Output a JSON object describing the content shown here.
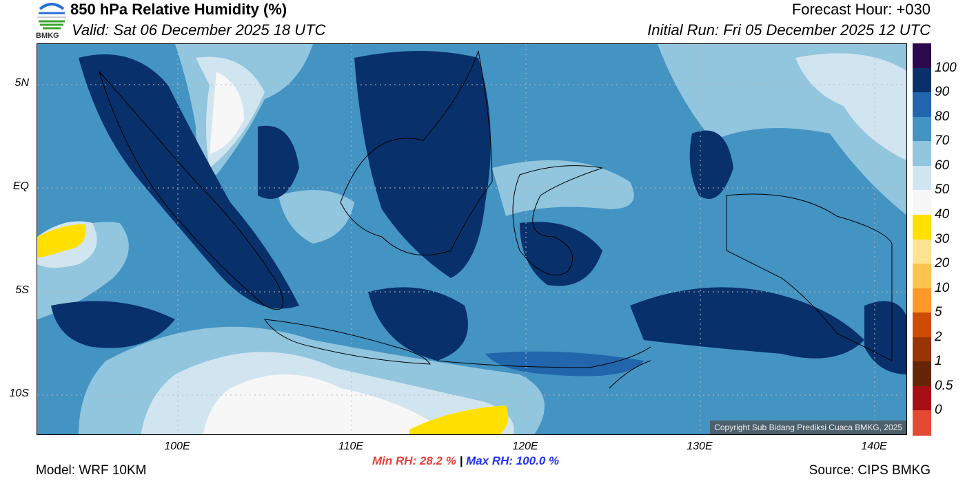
{
  "header": {
    "title": "850 hPa Relative Humidity (%)",
    "valid": "Valid: Sat 06 December 2025 18 UTC",
    "forecast_hour": "Forecast Hour: +030",
    "initial_run": "Initial Run: Fri 05 December 2025 12 UTC"
  },
  "logo": {
    "text": "BMKG"
  },
  "map": {
    "lat_labels": [
      "5N",
      "EQ",
      "5S",
      "10S"
    ],
    "lat_values": [
      5,
      0,
      -5,
      -10
    ],
    "lon_labels": [
      "100E",
      "110E",
      "120E",
      "130E",
      "140E"
    ],
    "lon_values": [
      100,
      110,
      120,
      130,
      140
    ],
    "extent": {
      "lon": [
        92,
        142
      ],
      "lat": [
        -12,
        6.7
      ]
    },
    "copyright": "Copyright Sub Bidang Prediksi Cuaca BMKG, 2025"
  },
  "colorbar": {
    "labels": [
      "100",
      "90",
      "80",
      "70",
      "60",
      "50",
      "40",
      "30",
      "20",
      "10",
      "5",
      "2",
      "1",
      "0.5",
      "0"
    ],
    "colors": [
      "#2a0a4c",
      "#08306b",
      "#2166ac",
      "#4393c3",
      "#92c5de",
      "#d1e5f0",
      "#f7f7f7",
      "#ffe000",
      "#fee391",
      "#fec44f",
      "#fe9929",
      "#cc4c02",
      "#993404",
      "#662506",
      "#a50f15",
      "#e34a33"
    ]
  },
  "footer": {
    "model": "Model: WRF 10KM",
    "source": "Source: CIPS BMKG",
    "min_rh": "Min RH:  28.2 %",
    "separator": " | ",
    "max_rh": "Max RH: 100.0 %"
  }
}
